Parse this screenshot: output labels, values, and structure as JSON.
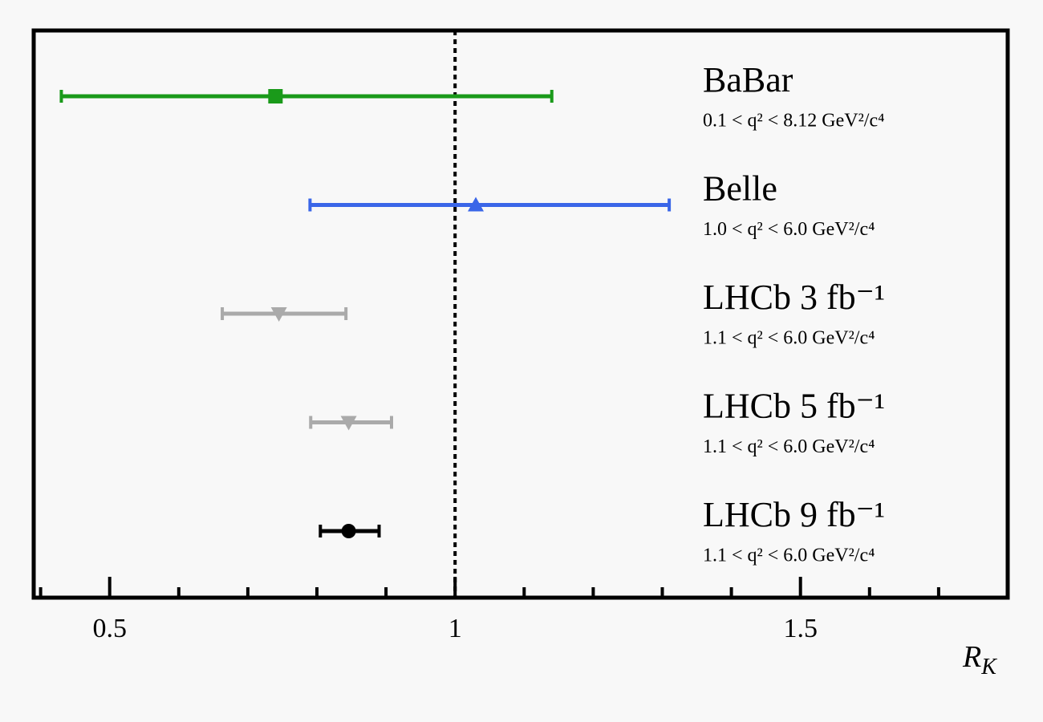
{
  "chart_data": {
    "type": "errorbar",
    "xlabel": "R",
    "xlabel_subscript": "K",
    "xlim": [
      0.39,
      1.8
    ],
    "xticks": [
      0.5,
      1,
      1.5
    ],
    "xticks_minor": [
      0.4,
      0.6,
      0.7,
      0.8,
      0.9,
      1.1,
      1.2,
      1.3,
      1.4,
      1.6,
      1.7,
      1.8
    ],
    "reference_line": 1,
    "series": [
      {
        "name": "BaBar",
        "range": "0.1 < q² < 8.12 GeV²/c⁴",
        "color": "#1a9a1a",
        "marker": "square",
        "value": 0.74,
        "err_minus": 0.31,
        "err_plus": 0.4
      },
      {
        "name": "Belle",
        "range": "1.0 < q² < 6.0 GeV²/c⁴",
        "color": "#3a66e8",
        "marker": "triangle-up",
        "value": 1.03,
        "err_minus": 0.24,
        "err_plus": 0.28
      },
      {
        "name": "LHCb 3 fb⁻¹",
        "range": "1.1 < q² < 6.0 GeV²/c⁴",
        "color": "#aaaaaa",
        "marker": "triangle-down",
        "value": 0.745,
        "err_minus": 0.082,
        "err_plus": 0.097
      },
      {
        "name": "LHCb 5 fb⁻¹",
        "range": "1.1 < q² < 6.0 GeV²/c⁴",
        "color": "#aaaaaa",
        "marker": "triangle-down",
        "value": 0.846,
        "err_minus": 0.055,
        "err_plus": 0.062
      },
      {
        "name": "LHCb 9 fb⁻¹",
        "range": "1.1 < q² < 6.0 GeV²/c⁴",
        "color": "#000000",
        "marker": "circle",
        "value": 0.846,
        "err_minus": 0.041,
        "err_plus": 0.044
      }
    ]
  }
}
